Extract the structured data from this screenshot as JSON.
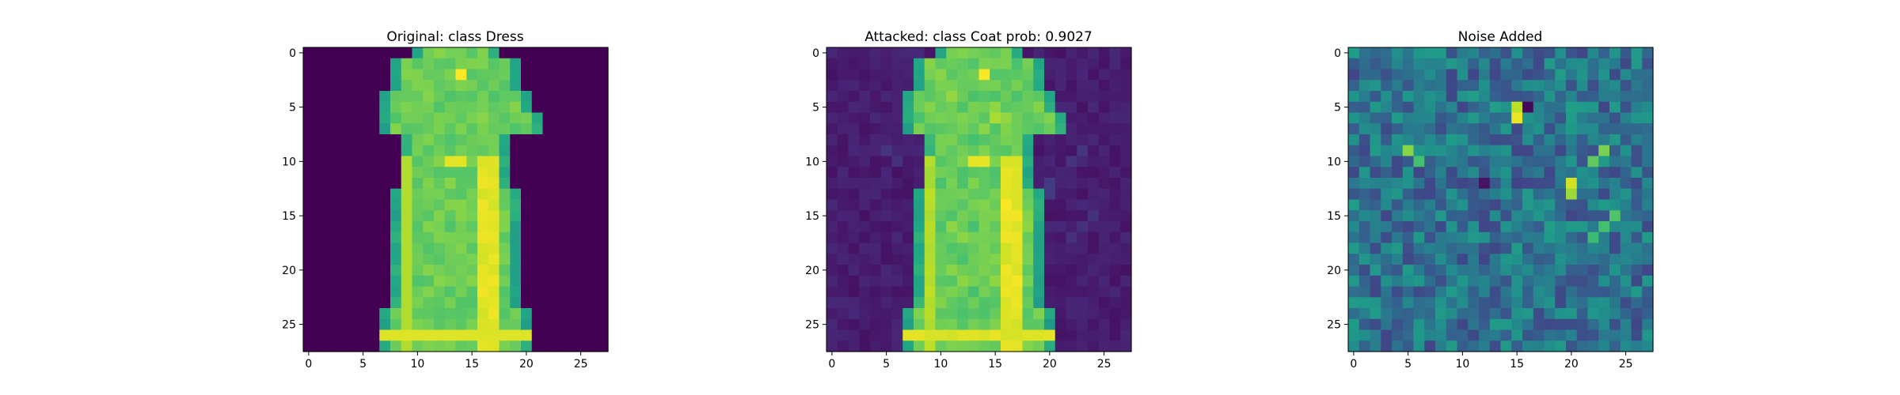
{
  "chart_data": [
    {
      "type": "heatmap",
      "title": "Original: class Dress",
      "image_size": [
        28,
        28
      ],
      "colormap": "viridis",
      "x_ticks": [
        "0",
        "5",
        "10",
        "15",
        "20",
        "25"
      ],
      "y_ticks": [
        "0",
        "5",
        "10",
        "15",
        "20",
        "25"
      ],
      "content": "dress"
    },
    {
      "type": "heatmap",
      "title": "Attacked: class Coat prob: 0.9027",
      "image_size": [
        28,
        28
      ],
      "colormap": "viridis",
      "x_ticks": [
        "0",
        "5",
        "10",
        "15",
        "20",
        "25"
      ],
      "y_ticks": [
        "0",
        "5",
        "10",
        "15",
        "20",
        "25"
      ],
      "content": "dress_with_noise"
    },
    {
      "type": "heatmap",
      "title": "Noise Added",
      "image_size": [
        28,
        28
      ],
      "colormap": "viridis",
      "x_ticks": [
        "0",
        "5",
        "10",
        "15",
        "20",
        "25"
      ],
      "y_ticks": [
        "0",
        "5",
        "10",
        "15",
        "20",
        "25"
      ],
      "content": "noise"
    }
  ]
}
